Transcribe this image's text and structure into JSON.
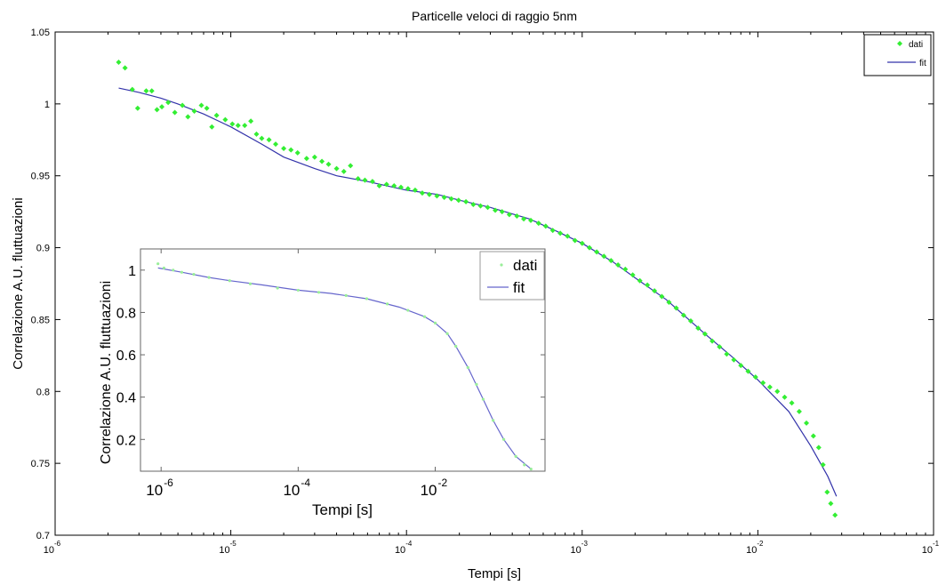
{
  "chart_data": [
    {
      "type": "scatter",
      "title": "Particelle veloci di raggio 5nm",
      "xlabel": "Tempi [s]",
      "ylabel": "Correlazione A.U. fluttuazioni",
      "xscale": "log",
      "xlim": [
        1e-06,
        0.1
      ],
      "ylim": [
        0.7,
        1.05
      ],
      "x_ticks": [
        {
          "base": "10",
          "exp": "-6"
        },
        {
          "base": "10",
          "exp": "-5"
        },
        {
          "base": "10",
          "exp": "-4"
        },
        {
          "base": "10",
          "exp": "-3"
        },
        {
          "base": "10",
          "exp": "-2"
        },
        {
          "base": "10",
          "exp": "-1"
        }
      ],
      "y_ticks": [
        "0.7",
        "0.75",
        "0.8",
        "0.85",
        "0.9",
        "0.95",
        "1",
        "1.05"
      ],
      "legend": {
        "position": "top-right",
        "entries": [
          "dati",
          "fit"
        ]
      },
      "series": [
        {
          "name": "dati",
          "style": "markers",
          "color": "#33ee33",
          "points": [
            [
              2.3e-06,
              1.029
            ],
            [
              2.5e-06,
              1.025
            ],
            [
              2.75e-06,
              1.01
            ],
            [
              2.95e-06,
              0.997
            ],
            [
              3.3e-06,
              1.009
            ],
            [
              3.55e-06,
              1.009
            ],
            [
              3.8e-06,
              0.996
            ],
            [
              4.05e-06,
              0.998
            ],
            [
              4.4e-06,
              1.001
            ],
            [
              4.8e-06,
              0.994
            ],
            [
              5.3e-06,
              0.999
            ],
            [
              5.7e-06,
              0.991
            ],
            [
              6.2e-06,
              0.995
            ],
            [
              6.8e-06,
              0.999
            ],
            [
              7.3e-06,
              0.997
            ],
            [
              7.8e-06,
              0.984
            ],
            [
              8.3e-06,
              0.992
            ],
            [
              9.3e-06,
              0.989
            ],
            [
              1.02e-05,
              0.986
            ],
            [
              1.1e-05,
              0.985
            ],
            [
              1.2e-05,
              0.985
            ],
            [
              1.3e-05,
              0.988
            ],
            [
              1.4e-05,
              0.979
            ],
            [
              1.5e-05,
              0.976
            ],
            [
              1.65e-05,
              0.975
            ],
            [
              1.8e-05,
              0.972
            ],
            [
              2e-05,
              0.969
            ],
            [
              2.2e-05,
              0.968
            ],
            [
              2.4e-05,
              0.966
            ],
            [
              2.7e-05,
              0.962
            ],
            [
              3e-05,
              0.963
            ],
            [
              3.3e-05,
              0.96
            ],
            [
              3.6e-05,
              0.958
            ],
            [
              4e-05,
              0.955
            ],
            [
              4.4e-05,
              0.953
            ],
            [
              4.8e-05,
              0.957
            ],
            [
              5.3e-05,
              0.948
            ],
            [
              5.8e-05,
              0.947
            ],
            [
              6.4e-05,
              0.946
            ],
            [
              7e-05,
              0.943
            ],
            [
              7.7e-05,
              0.944
            ],
            [
              8.5e-05,
              0.943
            ],
            [
              9.3e-05,
              0.942
            ],
            [
              0.000102,
              0.941
            ],
            [
              0.000112,
              0.94
            ],
            [
              0.000123,
              0.938
            ],
            [
              0.000135,
              0.937
            ],
            [
              0.000149,
              0.936
            ],
            [
              0.000164,
              0.935
            ],
            [
              0.00018,
              0.934
            ],
            [
              0.000198,
              0.933
            ],
            [
              0.000218,
              0.932
            ],
            [
              0.00024,
              0.93
            ],
            [
              0.000264,
              0.929
            ],
            [
              0.00029,
              0.928
            ],
            [
              0.00032,
              0.926
            ],
            [
              0.00035,
              0.925
            ],
            [
              0.000385,
              0.923
            ],
            [
              0.000425,
              0.922
            ],
            [
              0.000465,
              0.92
            ],
            [
              0.00051,
              0.919
            ],
            [
              0.000565,
              0.917
            ],
            [
              0.00062,
              0.915
            ],
            [
              0.00068,
              0.912
            ],
            [
              0.00075,
              0.91
            ],
            [
              0.000825,
              0.908
            ],
            [
              0.00091,
              0.905
            ],
            [
              0.001,
              0.903
            ],
            [
              0.0011,
              0.9
            ],
            [
              0.00121,
              0.897
            ],
            [
              0.00133,
              0.894
            ],
            [
              0.00146,
              0.891
            ],
            [
              0.0016,
              0.888
            ],
            [
              0.00176,
              0.885
            ],
            [
              0.00194,
              0.881
            ],
            [
              0.00213,
              0.877
            ],
            [
              0.00235,
              0.874
            ],
            [
              0.00258,
              0.87
            ],
            [
              0.00284,
              0.866
            ],
            [
              0.00312,
              0.862
            ],
            [
              0.00343,
              0.858
            ],
            [
              0.00378,
              0.853
            ],
            [
              0.00415,
              0.849
            ],
            [
              0.00457,
              0.844
            ],
            [
              0.005,
              0.84
            ],
            [
              0.0055,
              0.835
            ],
            [
              0.00605,
              0.831
            ],
            [
              0.00665,
              0.826
            ],
            [
              0.0073,
              0.822
            ],
            [
              0.008,
              0.818
            ],
            [
              0.0088,
              0.814
            ],
            [
              0.0097,
              0.81
            ],
            [
              0.0107,
              0.806
            ],
            [
              0.0117,
              0.803
            ],
            [
              0.0129,
              0.8
            ],
            [
              0.0142,
              0.796
            ],
            [
              0.0156,
              0.792
            ],
            [
              0.0172,
              0.786
            ],
            [
              0.0189,
              0.778
            ],
            [
              0.0207,
              0.769
            ],
            [
              0.0222,
              0.761
            ],
            [
              0.0235,
              0.749
            ],
            [
              0.0248,
              0.73
            ],
            [
              0.026,
              0.722
            ],
            [
              0.0275,
              0.714
            ]
          ]
        },
        {
          "name": "fit",
          "style": "line",
          "color": "#3333aa",
          "points": [
            [
              2.3e-06,
              1.011
            ],
            [
              3e-06,
              1.008
            ],
            [
              4e-06,
              1.004
            ],
            [
              5e-06,
              1.0
            ],
            [
              7e-06,
              0.993
            ],
            [
              1e-05,
              0.984
            ],
            [
              1.5e-05,
              0.972
            ],
            [
              2e-05,
              0.963
            ],
            [
              3e-05,
              0.955
            ],
            [
              4e-05,
              0.95
            ],
            [
              6e-05,
              0.946
            ],
            [
              0.0001,
              0.94
            ],
            [
              0.00015,
              0.937
            ],
            [
              0.0002,
              0.933
            ],
            [
              0.0003,
              0.928
            ],
            [
              0.0005,
              0.92
            ],
            [
              0.0007,
              0.912
            ],
            [
              0.001,
              0.903
            ],
            [
              0.0015,
              0.89
            ],
            [
              0.002,
              0.879
            ],
            [
              0.003,
              0.864
            ],
            [
              0.005,
              0.84
            ],
            [
              0.007,
              0.825
            ],
            [
              0.01,
              0.808
            ],
            [
              0.015,
              0.786
            ],
            [
              0.02,
              0.762
            ],
            [
              0.025,
              0.741
            ],
            [
              0.028,
              0.727
            ]
          ]
        }
      ]
    },
    {
      "type": "scatter",
      "title": "",
      "xlabel": "Tempi [s]",
      "ylabel": "Correlazione A.U. fluttuazioni",
      "xscale": "log",
      "xlim": [
        5e-07,
        0.4
      ],
      "ylim": [
        0.05,
        1.1
      ],
      "x_ticks": [
        {
          "value": 1e-06,
          "base": "10",
          "exp": "-6"
        },
        {
          "value": 0.0001,
          "base": "10",
          "exp": "-4"
        },
        {
          "value": 0.01,
          "base": "10",
          "exp": "-2"
        }
      ],
      "y_ticks": [
        "0.2",
        "0.4",
        "0.6",
        "0.8",
        "1"
      ],
      "legend": {
        "position": "top-right",
        "entries": [
          "dati",
          "fit"
        ]
      },
      "series": [
        {
          "name": "dati",
          "style": "markers",
          "color": "#99ee99",
          "points": [
            [
              9e-07,
              1.03
            ],
            [
              1.1e-06,
              1.01
            ],
            [
              1.5e-06,
              1.0
            ],
            [
              2e-06,
              0.99
            ],
            [
              3e-06,
              0.98
            ],
            [
              5e-06,
              0.965
            ],
            [
              1e-05,
              0.95
            ],
            [
              2e-05,
              0.935
            ],
            [
              5e-05,
              0.915
            ],
            [
              0.0001,
              0.905
            ],
            [
              0.0002,
              0.895
            ],
            [
              0.0005,
              0.88
            ],
            [
              0.001,
              0.865
            ],
            [
              0.002,
              0.84
            ],
            [
              0.004,
              0.81
            ],
            [
              0.007,
              0.78
            ],
            [
              0.01,
              0.75
            ],
            [
              0.015,
              0.7
            ],
            [
              0.02,
              0.64
            ],
            [
              0.03,
              0.54
            ],
            [
              0.04,
              0.46
            ],
            [
              0.05,
              0.39
            ],
            [
              0.07,
              0.29
            ],
            [
              0.1,
              0.2
            ],
            [
              0.15,
              0.12
            ],
            [
              0.2,
              0.08
            ],
            [
              0.25,
              0.06
            ]
          ]
        },
        {
          "name": "fit",
          "style": "line",
          "color": "#6666cc",
          "points": [
            [
              9e-07,
              1.01
            ],
            [
              2e-06,
              0.99
            ],
            [
              5e-06,
              0.965
            ],
            [
              1e-05,
              0.95
            ],
            [
              3e-05,
              0.93
            ],
            [
              0.0001,
              0.905
            ],
            [
              0.0003,
              0.89
            ],
            [
              0.001,
              0.865
            ],
            [
              0.003,
              0.825
            ],
            [
              0.007,
              0.78
            ],
            [
              0.01,
              0.75
            ],
            [
              0.015,
              0.7
            ],
            [
              0.02,
              0.64
            ],
            [
              0.03,
              0.54
            ],
            [
              0.05,
              0.39
            ],
            [
              0.07,
              0.29
            ],
            [
              0.1,
              0.2
            ],
            [
              0.15,
              0.12
            ],
            [
              0.25,
              0.06
            ]
          ]
        }
      ]
    }
  ]
}
